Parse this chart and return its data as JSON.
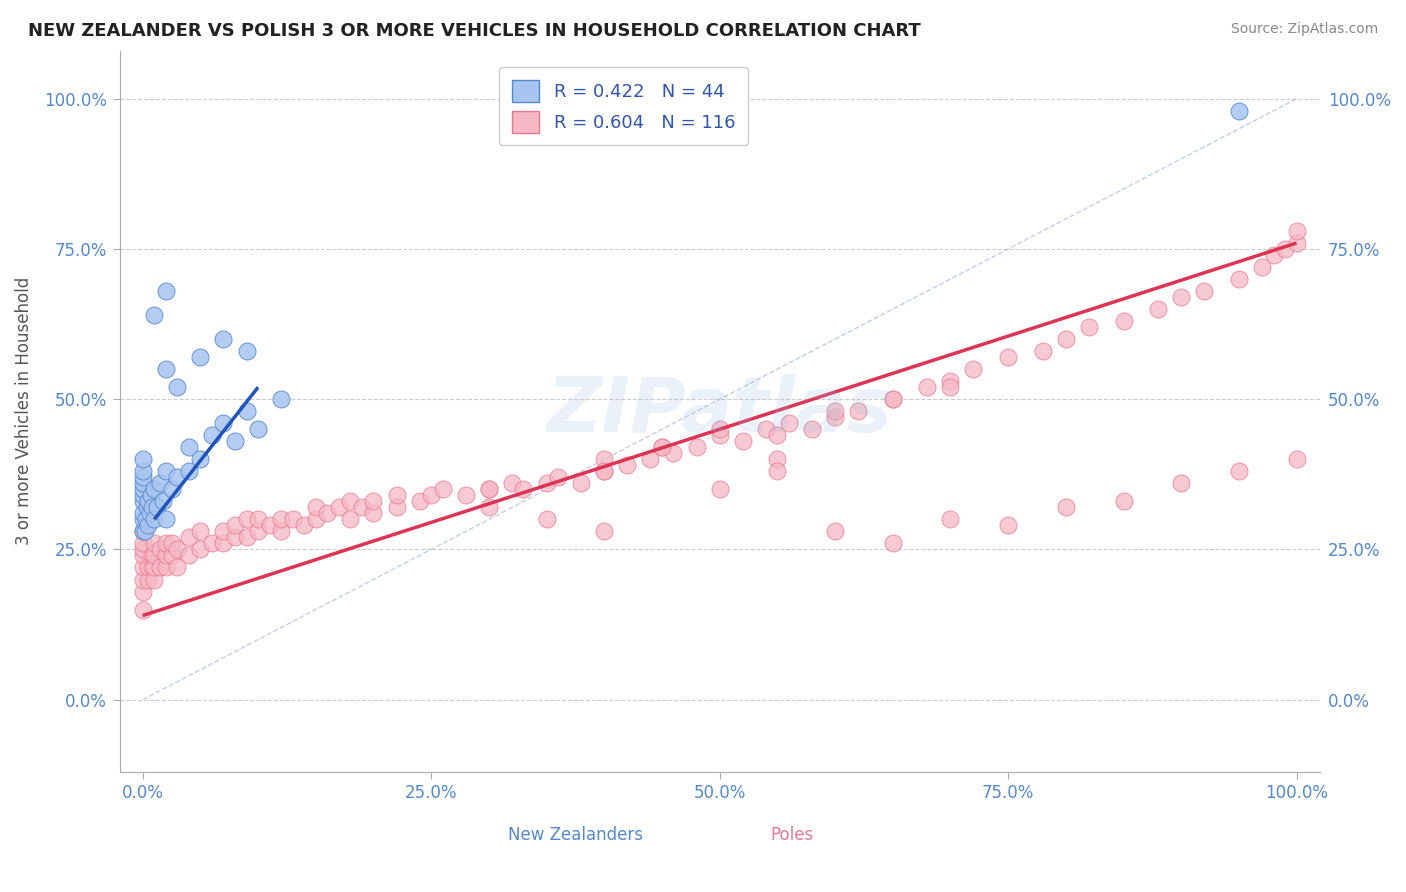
{
  "title": "NEW ZEALANDER VS POLISH 3 OR MORE VEHICLES IN HOUSEHOLD CORRELATION CHART",
  "source_text": "Source: ZipAtlas.com",
  "ylabel": "3 or more Vehicles in Household",
  "xlim": [
    -0.02,
    1.02
  ],
  "ylim": [
    -0.12,
    1.08
  ],
  "xticks": [
    0.0,
    0.25,
    0.5,
    0.75,
    1.0
  ],
  "xticklabels": [
    "0.0%",
    "25.0%",
    "50.0%",
    "75.0%",
    "100.0%"
  ],
  "yticks": [
    0.0,
    0.25,
    0.5,
    0.75,
    1.0
  ],
  "yticklabels": [
    "0.0%",
    "25.0%",
    "50.0%",
    "75.0%",
    "100.0%"
  ],
  "grid_color": "#cccccc",
  "background_color": "#ffffff",
  "nz_color": "#a8c4f0",
  "nz_edge_color": "#5588cc",
  "nz_R": 0.422,
  "nz_N": 44,
  "pol_color": "#f5b8c4",
  "pol_edge_color": "#e87890",
  "pol_R": 0.604,
  "pol_N": 116,
  "nz_trend_x": [
    0.01,
    0.1
  ],
  "nz_trend_y": [
    0.3,
    0.52
  ],
  "pol_trend_x": [
    0.0,
    1.0
  ],
  "pol_trend_y": [
    0.14,
    0.76
  ],
  "diag_color": "#aabbdd",
  "legend_color": "#3355aa",
  "tick_color": "#5588cc",
  "title_color": "#222222",
  "source_color": "#888888",
  "ylabel_color": "#555555",
  "nz_x": [
    0.0,
    0.0,
    0.0,
    0.0,
    0.0,
    0.0,
    0.0,
    0.0,
    0.0,
    0.0,
    0.002,
    0.003,
    0.004,
    0.005,
    0.005,
    0.006,
    0.007,
    0.008,
    0.01,
    0.01,
    0.012,
    0.015,
    0.018,
    0.02,
    0.02,
    0.025,
    0.03,
    0.04,
    0.04,
    0.05,
    0.06,
    0.07,
    0.08,
    0.09,
    0.1,
    0.12,
    0.02,
    0.03,
    0.05,
    0.07,
    0.09,
    0.01,
    0.02,
    0.95
  ],
  "nz_y": [
    0.28,
    0.3,
    0.31,
    0.33,
    0.34,
    0.35,
    0.36,
    0.37,
    0.38,
    0.4,
    0.28,
    0.3,
    0.32,
    0.29,
    0.33,
    0.31,
    0.34,
    0.32,
    0.3,
    0.35,
    0.32,
    0.36,
    0.33,
    0.3,
    0.38,
    0.35,
    0.37,
    0.38,
    0.42,
    0.4,
    0.44,
    0.46,
    0.43,
    0.48,
    0.45,
    0.5,
    0.55,
    0.52,
    0.57,
    0.6,
    0.58,
    0.64,
    0.68,
    0.98
  ],
  "pol_x": [
    0.0,
    0.0,
    0.0,
    0.0,
    0.0,
    0.0,
    0.0,
    0.0,
    0.005,
    0.005,
    0.008,
    0.008,
    0.01,
    0.01,
    0.01,
    0.01,
    0.015,
    0.015,
    0.02,
    0.02,
    0.02,
    0.025,
    0.025,
    0.03,
    0.03,
    0.04,
    0.04,
    0.05,
    0.05,
    0.06,
    0.07,
    0.07,
    0.08,
    0.08,
    0.09,
    0.09,
    0.1,
    0.1,
    0.11,
    0.12,
    0.12,
    0.13,
    0.14,
    0.15,
    0.15,
    0.16,
    0.17,
    0.18,
    0.18,
    0.19,
    0.2,
    0.2,
    0.22,
    0.22,
    0.24,
    0.25,
    0.26,
    0.28,
    0.3,
    0.3,
    0.32,
    0.33,
    0.35,
    0.36,
    0.38,
    0.4,
    0.4,
    0.42,
    0.44,
    0.45,
    0.46,
    0.48,
    0.5,
    0.52,
    0.54,
    0.55,
    0.56,
    0.58,
    0.6,
    0.62,
    0.65,
    0.68,
    0.7,
    0.72,
    0.75,
    0.78,
    0.8,
    0.82,
    0.85,
    0.88,
    0.9,
    0.92,
    0.95,
    0.97,
    0.98,
    0.99,
    1.0,
    1.0,
    0.3,
    0.35,
    0.4,
    0.45,
    0.5,
    0.55,
    0.6,
    0.65,
    0.7,
    0.4,
    0.5,
    0.55,
    0.6,
    0.65,
    0.7,
    0.75,
    0.8,
    0.85,
    0.9,
    0.95,
    1.0
  ],
  "pol_y": [
    0.15,
    0.18,
    0.2,
    0.22,
    0.24,
    0.25,
    0.26,
    0.28,
    0.2,
    0.22,
    0.22,
    0.24,
    0.2,
    0.22,
    0.24,
    0.26,
    0.22,
    0.25,
    0.22,
    0.24,
    0.26,
    0.24,
    0.26,
    0.22,
    0.25,
    0.24,
    0.27,
    0.25,
    0.28,
    0.26,
    0.26,
    0.28,
    0.27,
    0.29,
    0.27,
    0.3,
    0.28,
    0.3,
    0.29,
    0.28,
    0.3,
    0.3,
    0.29,
    0.3,
    0.32,
    0.31,
    0.32,
    0.3,
    0.33,
    0.32,
    0.31,
    0.33,
    0.32,
    0.34,
    0.33,
    0.34,
    0.35,
    0.34,
    0.32,
    0.35,
    0.36,
    0.35,
    0.36,
    0.37,
    0.36,
    0.38,
    0.4,
    0.39,
    0.4,
    0.42,
    0.41,
    0.42,
    0.44,
    0.43,
    0.45,
    0.44,
    0.46,
    0.45,
    0.47,
    0.48,
    0.5,
    0.52,
    0.53,
    0.55,
    0.57,
    0.58,
    0.6,
    0.62,
    0.63,
    0.65,
    0.67,
    0.68,
    0.7,
    0.72,
    0.74,
    0.75,
    0.76,
    0.78,
    0.35,
    0.3,
    0.38,
    0.42,
    0.45,
    0.4,
    0.48,
    0.5,
    0.52,
    0.28,
    0.35,
    0.38,
    0.28,
    0.26,
    0.3,
    0.29,
    0.32,
    0.33,
    0.36,
    0.38,
    0.4
  ]
}
